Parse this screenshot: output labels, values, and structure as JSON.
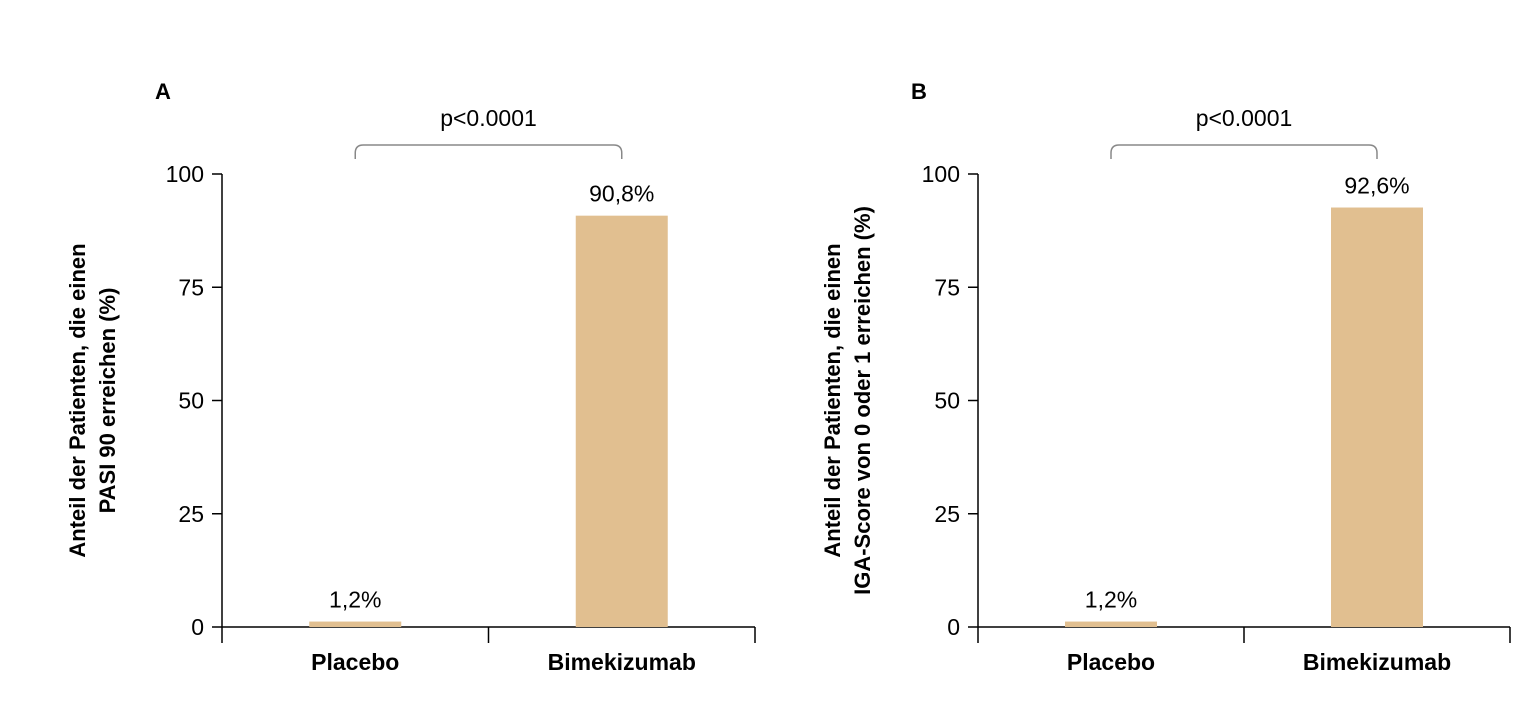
{
  "chart_data": [
    {
      "type": "bar",
      "panel": "A",
      "categories": [
        "Placebo",
        "Bimekizumab"
      ],
      "values": [
        1.2,
        90.8
      ],
      "value_labels": [
        "1,2%",
        "90,8%"
      ],
      "ylabel_lines": [
        "Anteil der Patienten, die einen",
        "PASI 90 erreichen  (%)"
      ],
      "yticks": [
        0,
        25,
        50,
        75,
        100
      ],
      "ylim": [
        0,
        100
      ],
      "significance": "p<0.0001",
      "bar_color": "#e1bf90"
    },
    {
      "type": "bar",
      "panel": "B",
      "categories": [
        "Placebo",
        "Bimekizumab"
      ],
      "values": [
        1.2,
        92.6
      ],
      "value_labels": [
        "1,2%",
        "92,6%"
      ],
      "ylabel_lines": [
        "Anteil der Patienten, die einen",
        "IGA-Score von 0 oder 1 erreichen (%)"
      ],
      "yticks": [
        0,
        25,
        50,
        75,
        100
      ],
      "ylim": [
        0,
        100
      ],
      "significance": "p<0.0001",
      "bar_color": "#e1bf90"
    }
  ]
}
